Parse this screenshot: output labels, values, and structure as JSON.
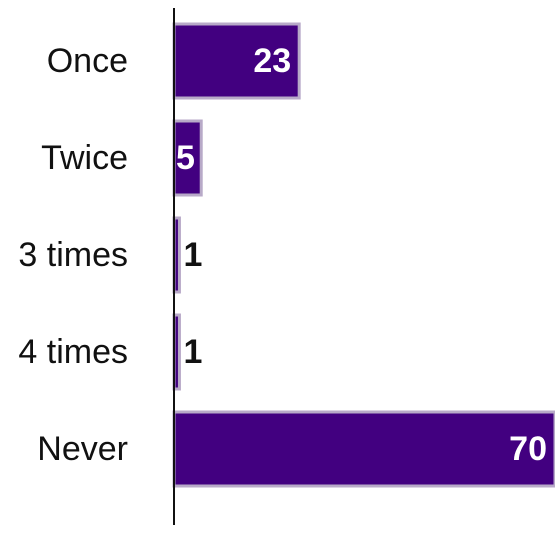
{
  "chart_data": {
    "type": "bar",
    "orientation": "horizontal",
    "categories": [
      "Once",
      "Twice",
      "3 times",
      "4 times",
      "Never"
    ],
    "values": [
      23,
      5,
      1,
      1,
      70
    ],
    "value_labels": [
      "23",
      "5",
      "1",
      "1",
      "70"
    ],
    "xlim": [
      0,
      70
    ],
    "grid": false,
    "legend": "none",
    "bar_color": "#420080",
    "bar_edge_color": "#b8aac8",
    "label_inside_color": "#ffffff",
    "label_outside_color": "#111111"
  }
}
